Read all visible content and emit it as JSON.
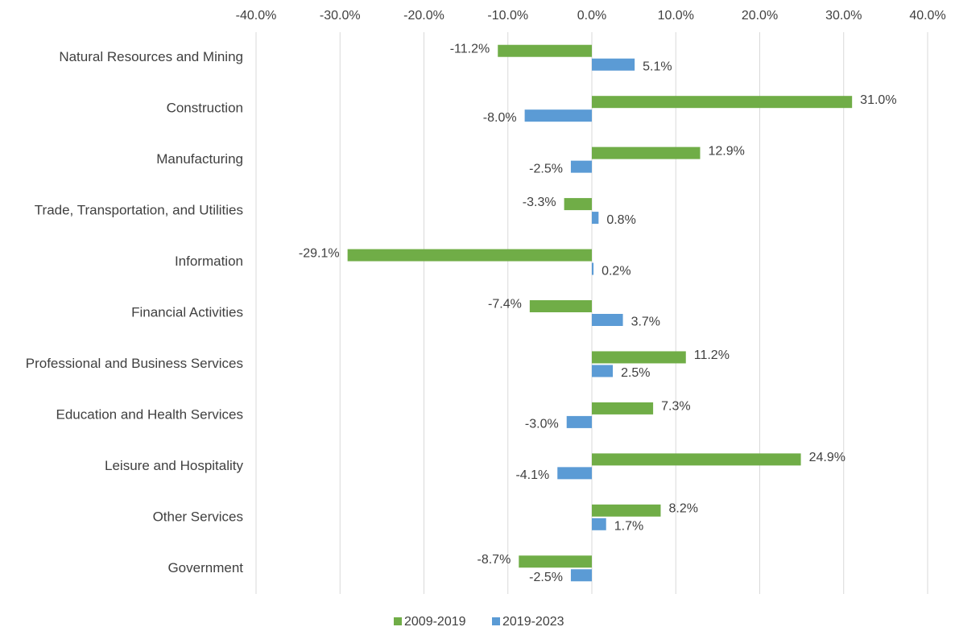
{
  "chart_data": {
    "type": "hbar",
    "categories": [
      "Natural Resources and Mining",
      "Construction",
      "Manufacturing",
      "Trade, Transportation, and Utilities",
      "Information",
      "Financial Activities",
      "Professional and Business Services",
      "Education and Health Services",
      "Leisure and Hospitality",
      "Other Services",
      "Government"
    ],
    "series": [
      {
        "name": "2009-2019",
        "color": "#70ad47",
        "values": [
          -11.2,
          31.0,
          12.9,
          -3.3,
          -29.1,
          -7.4,
          11.2,
          7.3,
          24.9,
          8.2,
          -8.7
        ],
        "value_labels": [
          "-11.2%",
          "31.0%",
          "12.9%",
          "-3.3%",
          "-29.1%",
          "-7.4%",
          "11.2%",
          "7.3%",
          "24.9%",
          "8.2%",
          "-8.7%"
        ]
      },
      {
        "name": "2019-2023",
        "color": "#5b9bd5",
        "values": [
          5.1,
          -8.0,
          -2.5,
          0.8,
          0.2,
          3.7,
          2.5,
          -3.0,
          -4.1,
          1.7,
          -2.5
        ],
        "value_labels": [
          "5.1%",
          "-8.0%",
          "-2.5%",
          "0.8%",
          "0.2%",
          "3.7%",
          "2.5%",
          "-3.0%",
          "-4.1%",
          "1.7%",
          "-2.5%"
        ]
      }
    ],
    "xlim": [
      -40,
      40
    ],
    "xticks": [
      {
        "value": -40,
        "label": "-40.0%"
      },
      {
        "value": -30,
        "label": "-30.0%"
      },
      {
        "value": -20,
        "label": "-20.0%"
      },
      {
        "value": -10,
        "label": "-10.0%"
      },
      {
        "value": 0,
        "label": "0.0%"
      },
      {
        "value": 10,
        "label": "10.0%"
      },
      {
        "value": 20,
        "label": "20.0%"
      },
      {
        "value": 30,
        "label": "30.0%"
      },
      {
        "value": 40,
        "label": "40.0%"
      }
    ],
    "grid": true,
    "legend": "bottom"
  }
}
